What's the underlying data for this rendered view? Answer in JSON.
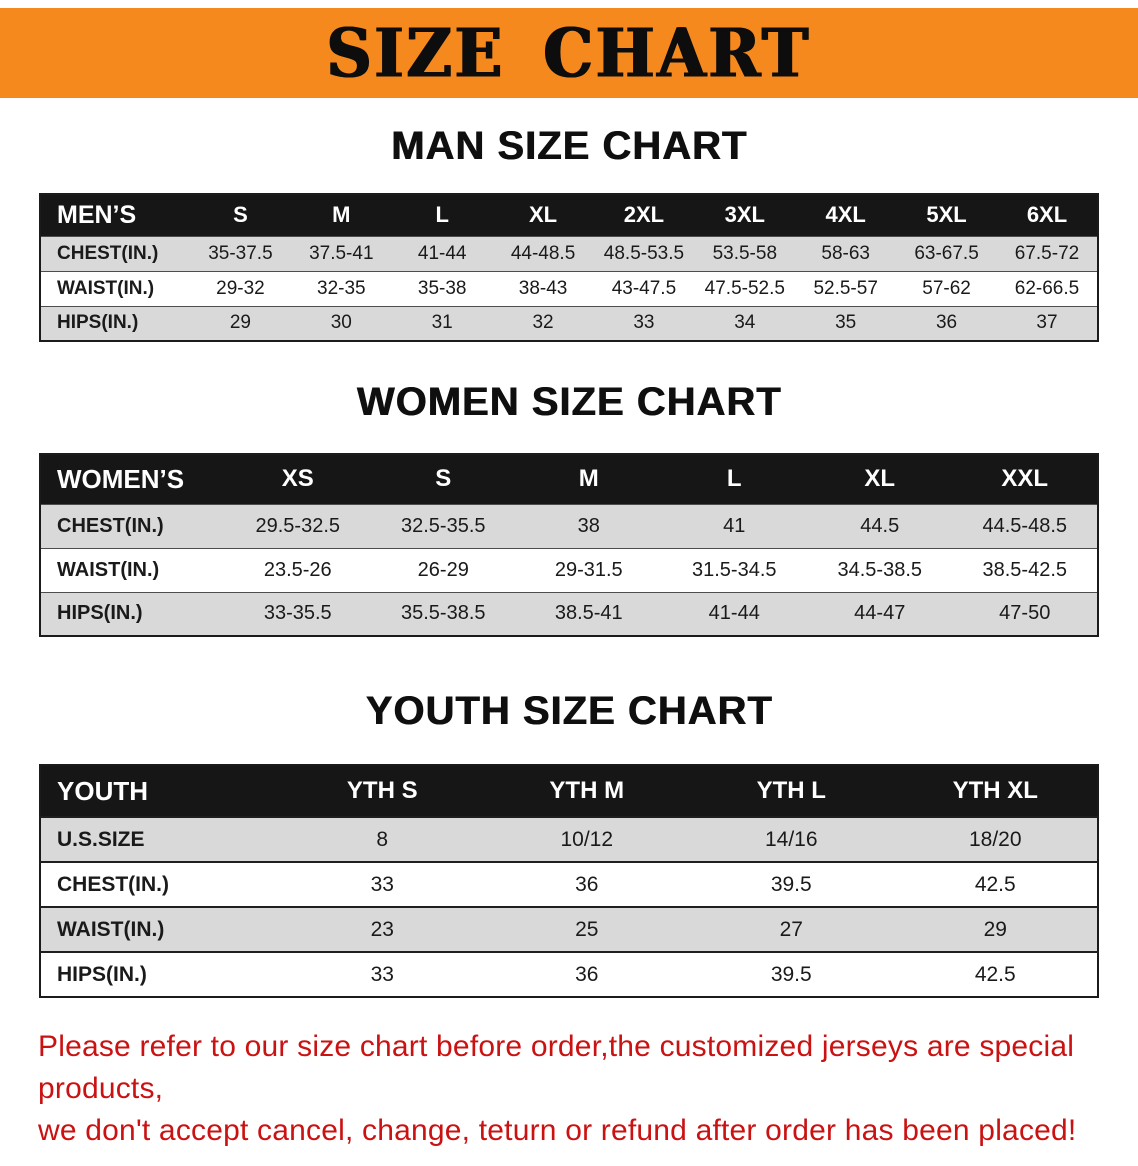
{
  "banner": {
    "title": "SIZE CHART"
  },
  "colors": {
    "banner_bg": "#f6891e",
    "header_bg": "#161616",
    "row_alt": "#d9d9d9",
    "disclaimer_red": "#cb1212"
  },
  "sections": [
    {
      "id": "men",
      "heading": "MAN SIZE CHART",
      "table": {
        "header": [
          "MEN’S",
          "S",
          "M",
          "L",
          "XL",
          "2XL",
          "3XL",
          "4XL",
          "5XL",
          "6XL"
        ],
        "rows": [
          {
            "label": "CHEST(IN.)",
            "values": [
              "35-37.5",
              "37.5-41",
              "41-44",
              "44-48.5",
              "48.5-53.5",
              "53.5-58",
              "58-63",
              "63-67.5",
              "67.5-72"
            ]
          },
          {
            "label": "WAIST(IN.)",
            "values": [
              "29-32",
              "32-35",
              "35-38",
              "38-43",
              "43-47.5",
              "47.5-52.5",
              "52.5-57",
              "57-62",
              "62-66.5"
            ]
          },
          {
            "label": "HIPS(IN.)",
            "values": [
              "29",
              "30",
              "31",
              "32",
              "33",
              "34",
              "35",
              "36",
              "37"
            ]
          }
        ]
      }
    },
    {
      "id": "women",
      "heading": "WOMEN SIZE CHART",
      "table": {
        "header": [
          "WOMEN’S",
          "XS",
          "S",
          "M",
          "L",
          "XL",
          "XXL"
        ],
        "rows": [
          {
            "label": "CHEST(IN.)",
            "values": [
              "29.5-32.5",
              "32.5-35.5",
              "38",
              "41",
              "44.5",
              "44.5-48.5"
            ]
          },
          {
            "label": "WAIST(IN.)",
            "values": [
              "23.5-26",
              "26-29",
              "29-31.5",
              "31.5-34.5",
              "34.5-38.5",
              "38.5-42.5"
            ]
          },
          {
            "label": "HIPS(IN.)",
            "values": [
              "33-35.5",
              "35.5-38.5",
              "38.5-41",
              "41-44",
              "44-47",
              "47-50"
            ]
          }
        ]
      }
    },
    {
      "id": "youth",
      "heading": "YOUTH SIZE CHART",
      "table": {
        "header": [
          "YOUTH",
          "YTH S",
          "YTH M",
          "YTH L",
          "YTH XL"
        ],
        "rows": [
          {
            "label": "U.S.SIZE",
            "values": [
              "8",
              "10/12",
              "14/16",
              "18/20"
            ]
          },
          {
            "label": "CHEST(IN.)",
            "values": [
              "33",
              "36",
              "39.5",
              "42.5"
            ]
          },
          {
            "label": "WAIST(IN.)",
            "values": [
              "23",
              "25",
              "27",
              "29"
            ]
          },
          {
            "label": "HIPS(IN.)",
            "values": [
              "33",
              "36",
              "39.5",
              "42.5"
            ]
          }
        ]
      }
    }
  ],
  "disclaimer": {
    "line1": "Please refer to our size chart before order,the customized jerseys are special products,",
    "line2": "we don't accept cancel, change, teturn or refund after order has been placed!"
  }
}
